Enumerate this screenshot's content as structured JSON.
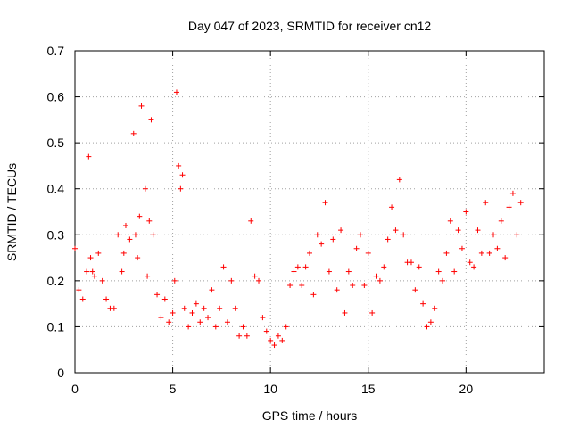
{
  "chart_data": {
    "type": "scatter",
    "title": "Day 047 of 2023, SRMTID for receiver cn12",
    "xlabel": "GPS time / hours",
    "ylabel": "SRMTID / TECUs",
    "xlim": [
      0,
      24
    ],
    "ylim": [
      0,
      0.7
    ],
    "xticks": [
      0,
      5,
      10,
      15,
      20
    ],
    "xtick_labels": [
      "0",
      "5",
      "10",
      "15",
      "20"
    ],
    "yticks": [
      0,
      0.1,
      0.2,
      0.3,
      0.4,
      0.5,
      0.6,
      0.7
    ],
    "ytick_labels": [
      "0",
      "0.1",
      "0.2",
      "0.3",
      "0.4",
      "0.5",
      "0.6",
      "0.7"
    ],
    "grid": true,
    "marker": "+",
    "marker_color": "#ff0000",
    "series": [
      {
        "name": "SRMTID",
        "x": [
          0.0,
          0.2,
          0.4,
          0.6,
          0.7,
          0.8,
          0.9,
          1.0,
          1.2,
          1.4,
          1.6,
          1.8,
          2.0,
          2.2,
          2.4,
          2.5,
          2.6,
          2.8,
          3.0,
          3.1,
          3.2,
          3.3,
          3.4,
          3.6,
          3.7,
          3.8,
          3.9,
          4.0,
          4.2,
          4.4,
          4.6,
          4.8,
          5.0,
          5.1,
          5.2,
          5.3,
          5.4,
          5.5,
          5.6,
          5.8,
          6.0,
          6.2,
          6.4,
          6.6,
          6.8,
          7.0,
          7.2,
          7.4,
          7.6,
          7.8,
          8.0,
          8.2,
          8.4,
          8.6,
          8.8,
          9.0,
          9.2,
          9.4,
          9.6,
          9.8,
          10.0,
          10.2,
          10.4,
          10.6,
          10.8,
          11.0,
          11.2,
          11.4,
          11.6,
          11.8,
          12.0,
          12.2,
          12.4,
          12.6,
          12.8,
          13.0,
          13.2,
          13.4,
          13.6,
          13.8,
          14.0,
          14.2,
          14.4,
          14.6,
          14.8,
          15.0,
          15.2,
          15.4,
          15.6,
          15.8,
          16.0,
          16.2,
          16.4,
          16.6,
          16.8,
          17.0,
          17.2,
          17.4,
          17.6,
          17.8,
          18.0,
          18.2,
          18.4,
          18.6,
          18.8,
          19.0,
          19.2,
          19.4,
          19.6,
          19.8,
          20.0,
          20.2,
          20.4,
          20.6,
          20.8,
          21.0,
          21.2,
          21.4,
          21.6,
          21.8,
          22.0,
          22.2,
          22.4,
          22.6,
          22.8
        ],
        "y": [
          0.27,
          0.18,
          0.16,
          0.22,
          0.47,
          0.25,
          0.22,
          0.21,
          0.26,
          0.2,
          0.16,
          0.14,
          0.14,
          0.3,
          0.22,
          0.26,
          0.32,
          0.29,
          0.52,
          0.3,
          0.25,
          0.34,
          0.58,
          0.4,
          0.21,
          0.33,
          0.55,
          0.3,
          0.17,
          0.12,
          0.16,
          0.11,
          0.13,
          0.2,
          0.61,
          0.45,
          0.4,
          0.43,
          0.14,
          0.1,
          0.13,
          0.15,
          0.11,
          0.14,
          0.12,
          0.18,
          0.1,
          0.14,
          0.23,
          0.11,
          0.2,
          0.14,
          0.08,
          0.1,
          0.08,
          0.33,
          0.21,
          0.2,
          0.12,
          0.09,
          0.07,
          0.06,
          0.08,
          0.07,
          0.1,
          0.19,
          0.22,
          0.23,
          0.19,
          0.23,
          0.26,
          0.17,
          0.3,
          0.28,
          0.37,
          0.22,
          0.29,
          0.18,
          0.31,
          0.13,
          0.22,
          0.19,
          0.27,
          0.3,
          0.19,
          0.26,
          0.13,
          0.21,
          0.2,
          0.23,
          0.29,
          0.36,
          0.31,
          0.42,
          0.3,
          0.24,
          0.24,
          0.18,
          0.23,
          0.15,
          0.1,
          0.11,
          0.14,
          0.22,
          0.2,
          0.26,
          0.33,
          0.22,
          0.31,
          0.27,
          0.35,
          0.24,
          0.23,
          0.31,
          0.26,
          0.37,
          0.26,
          0.3,
          0.27,
          0.33,
          0.25,
          0.36,
          0.39,
          0.3,
          0.37
        ]
      }
    ]
  }
}
